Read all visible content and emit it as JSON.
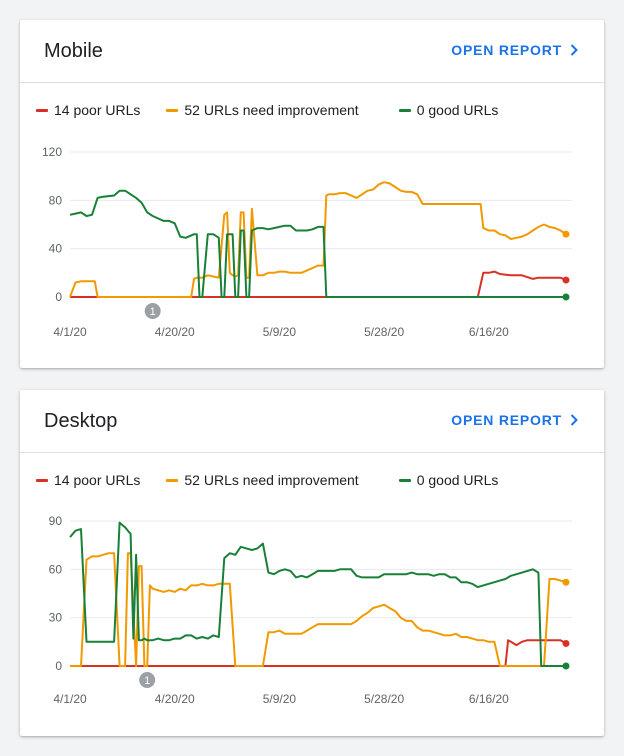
{
  "cards": [
    {
      "title": "Mobile",
      "open_report_label": "OPEN REPORT",
      "legend": [
        {
          "label": "14 poor URLs",
          "color": "#d93025"
        },
        {
          "label": "52 URLs need improvement",
          "color": "#f29900"
        },
        {
          "label": "0 good URLs",
          "color": "#188038"
        }
      ],
      "chart_data": {
        "type": "line",
        "ylim": [
          0,
          120
        ],
        "yticks": [
          "0",
          "40",
          "80",
          "120"
        ],
        "xlim": [
          0,
          90
        ],
        "xticks": [
          {
            "label": "4/1/20",
            "x": 0
          },
          {
            "label": "4/20/20",
            "x": 19
          },
          {
            "label": "5/9/20",
            "x": 38
          },
          {
            "label": "5/28/20",
            "x": 57
          },
          {
            "label": "6/16/20",
            "x": 76
          }
        ],
        "annotations": [
          {
            "label": "1",
            "x": 15
          }
        ],
        "series": [
          {
            "name": "14 poor URLs",
            "color": "#d93025",
            "x": [
              0,
              74,
              75,
              76,
              77,
              78,
              80,
              82,
              84,
              85,
              87,
              89,
              90
            ],
            "y": [
              0,
              0,
              20,
              20,
              21,
              19,
              18,
              18,
              15,
              16,
              16,
              16,
              14
            ]
          },
          {
            "name": "52 URLs need improvement",
            "color": "#f29900",
            "x": [
              0,
              1,
              2,
              3,
              4,
              4.5,
              5,
              22,
              22.5,
              23,
              24,
              25,
              26,
              27,
              28,
              28.5,
              29,
              29.5,
              30,
              30.5,
              31,
              31.5,
              32,
              32.5,
              33,
              34,
              35,
              36,
              37,
              38,
              39,
              40,
              41,
              42,
              43,
              44,
              45,
              46,
              46.5,
              47,
              48,
              49,
              50,
              51,
              52,
              53,
              54,
              55,
              56,
              57,
              58,
              59,
              60,
              61,
              62,
              63,
              64,
              65,
              66,
              67,
              68,
              69,
              70,
              71,
              72,
              73,
              74,
              74.5,
              75,
              76,
              77,
              78,
              79,
              80,
              81,
              82,
              83,
              84,
              85,
              86,
              87,
              88,
              89,
              90
            ],
            "y": [
              0,
              12,
              13,
              13,
              13,
              13,
              0,
              0,
              15,
              16,
              16,
              18,
              17,
              16,
              68,
              70,
              20,
              18,
              17,
              18,
              70,
              70,
              16,
              16,
              73,
              18,
              18,
              20,
              20,
              21,
              21,
              20,
              20,
              20,
              22,
              24,
              26,
              26,
              84,
              85,
              85,
              86,
              86,
              84,
              82,
              85,
              88,
              89,
              93,
              95,
              94,
              91,
              88,
              87,
              87,
              85,
              77,
              77,
              77,
              77,
              77,
              77,
              77,
              77,
              77,
              77,
              77,
              77,
              57,
              55,
              55,
              52,
              51,
              48,
              49,
              50,
              52,
              55,
              58,
              60,
              58,
              57,
              55,
              52
            ]
          },
          {
            "name": "0 good URLs",
            "color": "#188038",
            "x": [
              0,
              1,
              2,
              3,
              4,
              5,
              6,
              8,
              9,
              10,
              11,
              12,
              13,
              14,
              15,
              16,
              17,
              18,
              19,
              20,
              21,
              22,
              22.5,
              23,
              23.5,
              24,
              25,
              26,
              27,
              27.5,
              28,
              28.5,
              29,
              29.5,
              30,
              30.5,
              31,
              31.5,
              32,
              32.5,
              33,
              34,
              35,
              36,
              37,
              38,
              39,
              40,
              41,
              42,
              43,
              44,
              45,
              46,
              46.5,
              75,
              90
            ],
            "y": [
              68,
              69,
              70,
              67,
              68,
              82,
              83,
              84,
              88,
              88,
              85,
              82,
              78,
              70,
              67,
              65,
              63,
              63,
              61,
              50,
              49,
              51,
              52,
              52,
              0,
              0,
              52,
              52,
              49,
              0,
              0,
              52,
              52,
              52,
              0,
              0,
              55,
              55,
              0,
              0,
              55,
              57,
              57,
              56,
              57,
              58,
              59,
              59,
              55,
              55,
              55,
              56,
              58,
              58,
              0,
              0,
              0
            ]
          }
        ]
      }
    },
    {
      "title": "Desktop",
      "open_report_label": "OPEN REPORT",
      "legend": [
        {
          "label": "14 poor URLs",
          "color": "#d93025"
        },
        {
          "label": "52 URLs need improvement",
          "color": "#f29900"
        },
        {
          "label": "0 good URLs",
          "color": "#188038"
        }
      ],
      "chart_data": {
        "type": "line",
        "ylim": [
          0,
          90
        ],
        "yticks": [
          "0",
          "30",
          "60",
          "90"
        ],
        "xlim": [
          0,
          90
        ],
        "xticks": [
          {
            "label": "4/1/20",
            "x": 0
          },
          {
            "label": "4/20/20",
            "x": 19
          },
          {
            "label": "5/9/20",
            "x": 38
          },
          {
            "label": "5/28/20",
            "x": 57
          },
          {
            "label": "6/16/20",
            "x": 76
          }
        ],
        "annotations": [
          {
            "label": "1",
            "x": 14
          }
        ],
        "series": [
          {
            "name": "14 poor URLs",
            "color": "#d93025",
            "x": [
              0,
              79,
              79.5,
              80,
              81,
              82,
              83,
              84,
              85,
              86,
              87,
              88,
              89,
              90
            ],
            "y": [
              0,
              0,
              16,
              15,
              13,
              15,
              16,
              16,
              16,
              16,
              16,
              16,
              16,
              14
            ]
          },
          {
            "name": "52 URLs need improvement",
            "color": "#f29900",
            "x": [
              0,
              2,
              3,
              4,
              5,
              6,
              7,
              8,
              9,
              10,
              10.5,
              11,
              12,
              12.5,
              13,
              13.5,
              14,
              14.5,
              15,
              16,
              17,
              18,
              19,
              20,
              21,
              22,
              23,
              24,
              25,
              26,
              27,
              28,
              29,
              30,
              35,
              36,
              37,
              38,
              39,
              40,
              41,
              42,
              43,
              44,
              45,
              46,
              47,
              48,
              49,
              50,
              51,
              52,
              53,
              54,
              55,
              56,
              57,
              58,
              59,
              60,
              61,
              62,
              63,
              64,
              65,
              66,
              67,
              68,
              69,
              70,
              71,
              72,
              73,
              74,
              75,
              76,
              77,
              78,
              79,
              80,
              85,
              86,
              87,
              88,
              89,
              90
            ],
            "y": [
              0,
              0,
              66,
              68,
              68,
              69,
              70,
              70,
              0,
              0,
              70,
              70,
              0,
              62,
              62,
              0,
              0,
              50,
              48,
              47,
              46,
              47,
              46,
              48,
              47,
              50,
              50,
              51,
              50,
              50,
              51,
              51,
              51,
              0,
              0,
              21,
              21,
              22,
              20,
              20,
              20,
              20,
              22,
              24,
              26,
              26,
              26,
              26,
              26,
              26,
              26,
              28,
              31,
              33,
              36,
              37,
              38,
              36,
              34,
              30,
              28,
              28,
              24,
              22,
              22,
              21,
              20,
              19,
              19,
              20,
              18,
              18,
              17,
              16,
              16,
              15,
              15,
              0,
              0,
              0,
              0,
              0,
              54,
              54,
              53,
              52
            ]
          },
          {
            "name": "0 good URLs",
            "color": "#188038",
            "x": [
              0,
              1,
              2,
              3,
              4,
              5,
              6,
              7,
              8,
              9,
              10,
              11,
              11.5,
              12,
              12.5,
              13,
              13.5,
              14,
              15,
              16,
              17,
              18,
              19,
              20,
              21,
              22,
              23,
              24,
              25,
              26,
              27,
              28,
              29,
              30,
              31,
              32,
              33,
              34,
              35,
              36,
              37,
              38,
              39,
              40,
              41,
              42,
              43,
              44,
              45,
              46,
              47,
              48,
              49,
              50,
              51,
              52,
              53,
              54,
              55,
              56,
              57,
              58,
              59,
              60,
              61,
              62,
              63,
              64,
              65,
              66,
              67,
              68,
              69,
              70,
              71,
              72,
              73,
              74,
              75,
              76,
              77,
              78,
              79,
              80,
              81,
              82,
              83,
              84,
              85,
              85.5,
              86,
              90
            ],
            "y": [
              80,
              84,
              85,
              15,
              15,
              15,
              15,
              15,
              15,
              89,
              86,
              82,
              17,
              69,
              16,
              16,
              17,
              16,
              16,
              17,
              16,
              16,
              17,
              17,
              19,
              19,
              17,
              18,
              17,
              19,
              18,
              67,
              70,
              69,
              74,
              73,
              72,
              73,
              76,
              58,
              57,
              59,
              60,
              59,
              55,
              56,
              55,
              57,
              59,
              59,
              59,
              59,
              60,
              60,
              60,
              56,
              55,
              55,
              55,
              55,
              57,
              57,
              57,
              57,
              57,
              58,
              57,
              57,
              57,
              56,
              57,
              57,
              55,
              55,
              52,
              52,
              51,
              49,
              50,
              51,
              52,
              53,
              54,
              56,
              57,
              58,
              59,
              60,
              58,
              0,
              0,
              0
            ]
          }
        ]
      }
    }
  ]
}
